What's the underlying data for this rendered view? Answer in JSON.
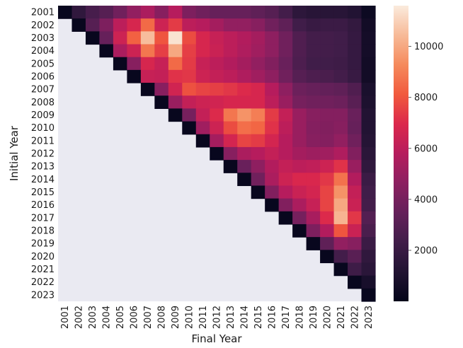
{
  "chart_data": {
    "type": "heatmap",
    "title": "",
    "xlabel": "Final Year",
    "ylabel": "Initial Year",
    "x_categories": [
      "2001",
      "2002",
      "2003",
      "2004",
      "2005",
      "2006",
      "2007",
      "2008",
      "2009",
      "2010",
      "2011",
      "2012",
      "2013",
      "2014",
      "2015",
      "2016",
      "2017",
      "2018",
      "2019",
      "2020",
      "2021",
      "2022",
      "2023"
    ],
    "y_categories": [
      "2001",
      "2002",
      "2003",
      "2004",
      "2005",
      "2006",
      "2007",
      "2008",
      "2009",
      "2010",
      "2011",
      "2012",
      "2013",
      "2014",
      "2015",
      "2016",
      "2017",
      "2018",
      "2019",
      "2020",
      "2021",
      "2022",
      "2023"
    ],
    "matrix_note": "Upper-triangular matrix: row = initial year, column = final year; null cells (final year earlier than initial year) are blank.",
    "values": [
      [
        200,
        1700,
        2500,
        3000,
        3800,
        4800,
        5500,
        4500,
        5800,
        4200,
        3800,
        3500,
        3500,
        3500,
        3300,
        3000,
        2400,
        1600,
        1400,
        1400,
        1400,
        1200,
        400
      ],
      [
        null,
        200,
        3000,
        4200,
        6000,
        6800,
        8500,
        6500,
        7400,
        6000,
        5800,
        5300,
        4800,
        4800,
        4500,
        3800,
        3300,
        2300,
        2000,
        2100,
        2100,
        1800,
        600
      ],
      [
        null,
        null,
        200,
        3500,
        6500,
        8300,
        10500,
        8000,
        11400,
        7800,
        6800,
        6300,
        6000,
        5700,
        5300,
        4700,
        3800,
        2800,
        2400,
        2400,
        2300,
        1900,
        700
      ],
      [
        null,
        null,
        null,
        200,
        5500,
        6500,
        8800,
        7500,
        10000,
        7500,
        6800,
        6400,
        6000,
        5600,
        5200,
        4700,
        3800,
        2800,
        2400,
        2400,
        2300,
        1900,
        700
      ],
      [
        null,
        null,
        null,
        null,
        200,
        4500,
        6800,
        6300,
        8500,
        7400,
        6300,
        6000,
        5700,
        5300,
        4800,
        4300,
        3600,
        2700,
        2300,
        2300,
        2200,
        1900,
        600
      ],
      [
        null,
        null,
        null,
        null,
        null,
        200,
        6300,
        6200,
        7200,
        7300,
        6500,
        6200,
        6000,
        5600,
        5200,
        4700,
        3800,
        3000,
        2700,
        2600,
        2400,
        2000,
        600
      ],
      [
        null,
        null,
        null,
        null,
        null,
        null,
        200,
        4500,
        6600,
        7900,
        7600,
        7500,
        7300,
        7000,
        6800,
        5800,
        4700,
        3700,
        3500,
        3400,
        3300,
        2800,
        900
      ],
      [
        null,
        null,
        null,
        null,
        null,
        null,
        null,
        200,
        5000,
        6200,
        6500,
        6600,
        6800,
        6800,
        6800,
        6000,
        5000,
        4000,
        3800,
        3800,
        3700,
        3100,
        1000
      ],
      [
        null,
        null,
        null,
        null,
        null,
        null,
        null,
        null,
        200,
        4000,
        6200,
        7000,
        8800,
        9500,
        9000,
        7400,
        6200,
        5000,
        4500,
        4400,
        4400,
        3600,
        1200
      ],
      [
        null,
        null,
        null,
        null,
        null,
        null,
        null,
        null,
        null,
        200,
        5200,
        6500,
        7800,
        8600,
        8400,
        7200,
        6000,
        5000,
        4400,
        4300,
        4500,
        3500,
        1200
      ],
      [
        null,
        null,
        null,
        null,
        null,
        null,
        null,
        null,
        null,
        null,
        200,
        5300,
        6700,
        7600,
        7400,
        6700,
        5800,
        5000,
        4500,
        4400,
        4800,
        3800,
        1300
      ],
      [
        null,
        null,
        null,
        null,
        null,
        null,
        null,
        null,
        null,
        null,
        null,
        200,
        4500,
        5500,
        5800,
        6200,
        5800,
        5300,
        5100,
        5200,
        5600,
        4300,
        1500
      ],
      [
        null,
        null,
        null,
        null,
        null,
        null,
        null,
        null,
        null,
        null,
        null,
        null,
        200,
        3600,
        4700,
        5700,
        6200,
        6000,
        6100,
        6500,
        7200,
        5000,
        1700
      ],
      [
        null,
        null,
        null,
        null,
        null,
        null,
        null,
        null,
        null,
        null,
        null,
        null,
        null,
        200,
        3800,
        5500,
        6500,
        6900,
        6900,
        7300,
        8700,
        5700,
        2100
      ],
      [
        null,
        null,
        null,
        null,
        null,
        null,
        null,
        null,
        null,
        null,
        null,
        null,
        null,
        null,
        200,
        4300,
        5800,
        6400,
        6700,
        7600,
        9500,
        6200,
        2300
      ],
      [
        null,
        null,
        null,
        null,
        null,
        null,
        null,
        null,
        null,
        null,
        null,
        null,
        null,
        null,
        null,
        200,
        4300,
        5500,
        6300,
        7600,
        10000,
        6400,
        2400
      ],
      [
        null,
        null,
        null,
        null,
        null,
        null,
        null,
        null,
        null,
        null,
        null,
        null,
        null,
        null,
        null,
        null,
        200,
        4000,
        5400,
        7000,
        10300,
        7300,
        2900
      ],
      [
        null,
        null,
        null,
        null,
        null,
        null,
        null,
        null,
        null,
        null,
        null,
        null,
        null,
        null,
        null,
        null,
        null,
        200,
        4200,
        5700,
        8000,
        6400,
        2600
      ],
      [
        null,
        null,
        null,
        null,
        null,
        null,
        null,
        null,
        null,
        null,
        null,
        null,
        null,
        null,
        null,
        null,
        null,
        null,
        200,
        3300,
        4800,
        4500,
        2100
      ],
      [
        null,
        null,
        null,
        null,
        null,
        null,
        null,
        null,
        null,
        null,
        null,
        null,
        null,
        null,
        null,
        null,
        null,
        null,
        null,
        200,
        2400,
        3100,
        1700
      ],
      [
        null,
        null,
        null,
        null,
        null,
        null,
        null,
        null,
        null,
        null,
        null,
        null,
        null,
        null,
        null,
        null,
        null,
        null,
        null,
        null,
        200,
        2200,
        1500
      ],
      [
        null,
        null,
        null,
        null,
        null,
        null,
        null,
        null,
        null,
        null,
        null,
        null,
        null,
        null,
        null,
        null,
        null,
        null,
        null,
        null,
        null,
        200,
        800
      ],
      [
        null,
        null,
        null,
        null,
        null,
        null,
        null,
        null,
        null,
        null,
        null,
        null,
        null,
        null,
        null,
        null,
        null,
        null,
        null,
        null,
        null,
        null,
        200
      ]
    ],
    "vmin": 0,
    "vmax": 11600,
    "colormap": "rocket",
    "background_color": "#eaeaf2",
    "grid": false,
    "legend": "colorbar-right",
    "colorbar_ticks": [
      2000,
      4000,
      6000,
      8000,
      10000
    ]
  }
}
